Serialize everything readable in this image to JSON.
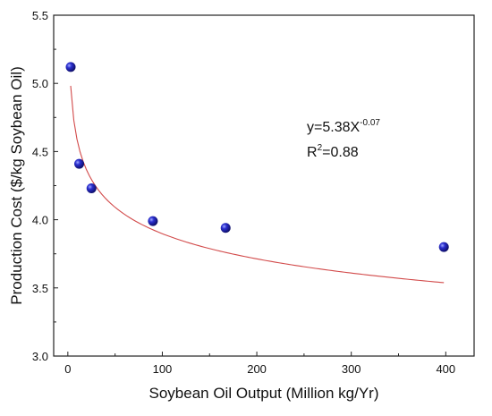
{
  "chart_data": {
    "type": "scatter",
    "xlabel": "Soybean Oil Output (Million kg/Yr)",
    "ylabel": "Production Cost ($/kg Soybean Oil)",
    "xlim": [
      -15,
      430
    ],
    "ylim": [
      3.0,
      5.5
    ],
    "xticks": [
      0,
      100,
      200,
      300,
      400
    ],
    "yticks": [
      3.0,
      3.5,
      4.0,
      4.5,
      5.0,
      5.5
    ],
    "xtick_labels": [
      "0",
      "100",
      "200",
      "300",
      "400"
    ],
    "ytick_labels": [
      "3.0",
      "3.5",
      "4.0",
      "4.5",
      "5.0",
      "5.5"
    ],
    "grid": false,
    "points": [
      {
        "x": 3,
        "y": 5.12
      },
      {
        "x": 12,
        "y": 4.41
      },
      {
        "x": 25,
        "y": 4.23
      },
      {
        "x": 90,
        "y": 3.99
      },
      {
        "x": 167,
        "y": 3.94
      },
      {
        "x": 398,
        "y": 3.8
      }
    ],
    "fit": {
      "equation": "y=5.38X",
      "exponent": "-0.07",
      "r2_prefix": "R",
      "r2_sup": "2",
      "r2_value": "=0.88",
      "coef": 5.38,
      "power": -0.07,
      "x_range": [
        3,
        398
      ]
    },
    "colors": {
      "marker": "#1a1aa6",
      "fit_line": "#d24a4a",
      "axis": "#222222"
    }
  }
}
